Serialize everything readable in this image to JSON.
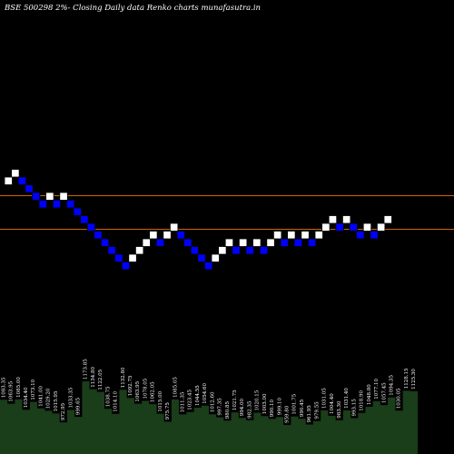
{
  "chart_data": {
    "type": "renko",
    "title": "BSE 500298  2%-  Closing Daily data  Renko  charts munafasutra.in",
    "colors": {
      "background": "#000000",
      "up_brick": "#ffffff",
      "down_brick": "#0000ff",
      "level_line": "#cc6600",
      "volume_fill": "#1a3d1a"
    },
    "bricks": [
      "up",
      "up",
      "down",
      "down",
      "down",
      "down",
      "up",
      "down",
      "up",
      "down",
      "down",
      "down",
      "down",
      "down",
      "down",
      "down",
      "down",
      "down",
      "up",
      "up",
      "up",
      "up",
      "down",
      "up",
      "up",
      "down",
      "down",
      "down",
      "down",
      "down",
      "up",
      "up",
      "up",
      "down",
      "up",
      "down",
      "up",
      "down",
      "up",
      "up",
      "down",
      "up",
      "down",
      "up",
      "down",
      "up",
      "up",
      "up",
      "down",
      "up",
      "down",
      "down",
      "up",
      "down",
      "up",
      "up"
    ],
    "level_lines": [
      "upper",
      "lower"
    ],
    "volume_labels": [
      "1083.35",
      "1063.95",
      "1085.00",
      "1034.40",
      "1073.10",
      "1041.00",
      "1029.20",
      "1015.95",
      "972.95",
      "1033.35",
      "999.65",
      "1173.85",
      "1134.80",
      "1122.05",
      "1038.75",
      "1014.10",
      "1132.80",
      "1092.75",
      "1063.95",
      "1078.05",
      "1062.05",
      "1015.00",
      "975.75",
      "1085.05",
      "1011.35",
      "1023.45",
      "1044.55",
      "1054.60",
      "1012.60",
      "997.35",
      "980.85",
      "1021.75",
      "994.00",
      "982.35",
      "1020.15",
      "1003.00",
      "990.10",
      "999.10",
      "959.80",
      "1001.75",
      "990.45",
      "961.95",
      "979.55",
      "1031.05",
      "1004.40",
      "983.30",
      "1031.40",
      "993.15",
      "1018.90",
      "1048.80",
      "1077.10",
      "1057.45",
      "1094.35",
      "1030.05",
      "1128.15",
      "1125.30"
    ]
  }
}
